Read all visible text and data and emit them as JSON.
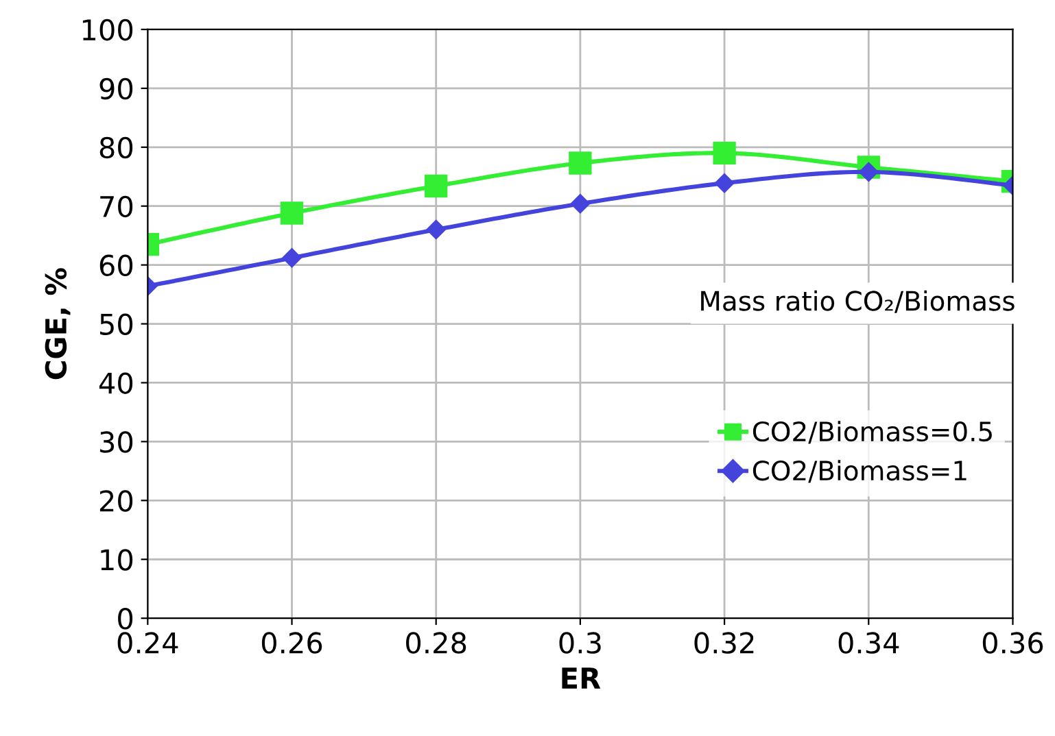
{
  "chart_data": {
    "type": "line",
    "xlabel": "ER",
    "ylabel": "CGE, %",
    "x": [
      0.24,
      0.26,
      0.28,
      0.3,
      0.32,
      0.34,
      0.36
    ],
    "series": [
      {
        "name": "CO2/Biomass=0.5",
        "color": "#33ee33",
        "marker": "square",
        "values": [
          63.5,
          68.8,
          73.4,
          77.3,
          79.0,
          76.6,
          74.2
        ]
      },
      {
        "name": "CO2/Biomass=1",
        "color": "#4444dd",
        "marker": "diamond",
        "values": [
          56.4,
          61.2,
          66.0,
          70.4,
          73.9,
          75.8,
          73.5
        ]
      }
    ],
    "xlim": [
      0.24,
      0.36
    ],
    "xticks": [
      0.24,
      0.26,
      0.28,
      0.3,
      0.32,
      0.34,
      0.36
    ],
    "ylim": [
      0,
      100
    ],
    "yticks": [
      0,
      10,
      20,
      30,
      40,
      50,
      60,
      70,
      80,
      90,
      100
    ],
    "grid": true,
    "legend": "right",
    "line_style": "solid",
    "annotations": [
      "Mass ratio CO₂/Biomass"
    ]
  }
}
